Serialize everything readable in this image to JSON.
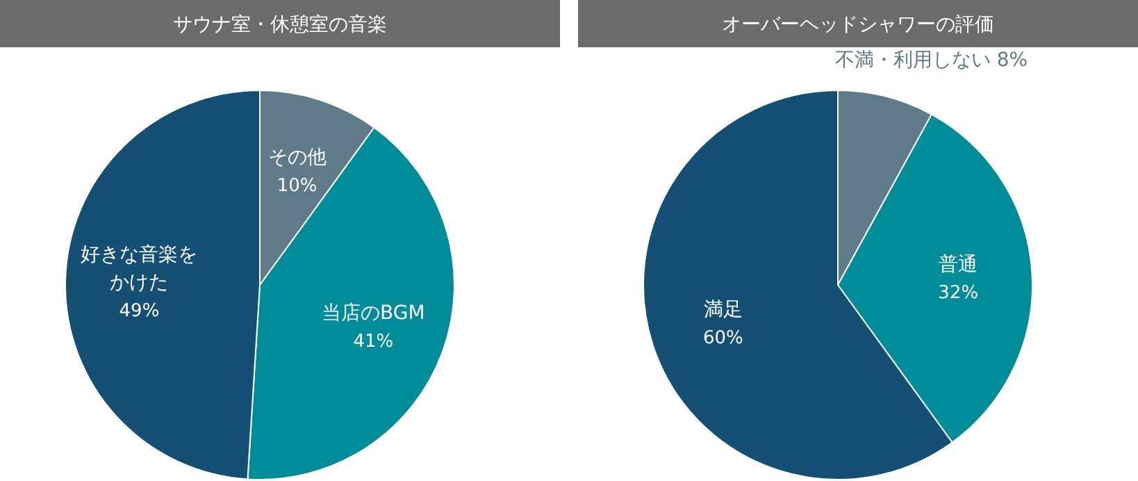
{
  "chart_data": [
    {
      "type": "pie",
      "title": "サウナ室・休憩室の音楽",
      "categories": [
        "その他",
        "当店のBGM",
        "好きな音楽をかけた"
      ],
      "values": [
        10,
        41,
        49
      ],
      "colors": [
        "#5f7b8a",
        "#008c98",
        "#154f74"
      ],
      "value_labels": [
        "10%",
        "41%",
        "49%"
      ]
    },
    {
      "type": "pie",
      "title": "オーバーヘッドシャワーの評価",
      "categories": [
        "不満・利用しない",
        "普通",
        "満足"
      ],
      "values": [
        8,
        32,
        60
      ],
      "colors": [
        "#5f7b8a",
        "#008c98",
        "#154f74"
      ],
      "value_labels": [
        "8%",
        "32%",
        "60%"
      ]
    }
  ]
}
